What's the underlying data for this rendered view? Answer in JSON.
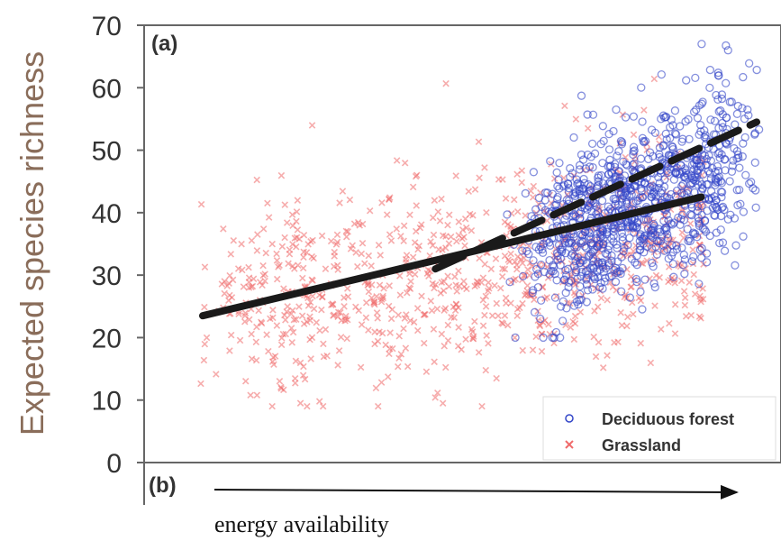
{
  "chart_data": {
    "type": "scatter",
    "panel_label": "(a)",
    "next_panel_label": "(b)",
    "ylabel": "Expected species richness",
    "xlabel": "energy availability",
    "ylim": [
      0,
      70
    ],
    "yticks": [
      "0",
      "10",
      "20",
      "30",
      "40",
      "50",
      "60",
      "70"
    ],
    "grid": false,
    "legend_position": "bottom-right",
    "series": [
      {
        "name": "Deciduous forest",
        "marker": "open-circle",
        "color": "#3346c8",
        "x_range": [
          0.58,
          1.0
        ],
        "y_range": [
          20,
          67
        ],
        "trend": {
          "style": "dashed",
          "x0": 0.42,
          "y0": 31,
          "x1": 1.0,
          "y1": 54.5
        }
      },
      {
        "name": "Grassland",
        "marker": "cross",
        "color": "#f06a6a",
        "x_range": [
          0.0,
          0.88
        ],
        "y_range": [
          9,
          63
        ],
        "trend": {
          "style": "solid",
          "x0": 0.0,
          "y0": 23.5,
          "x1": 0.9,
          "y1": 42.5
        }
      }
    ]
  }
}
